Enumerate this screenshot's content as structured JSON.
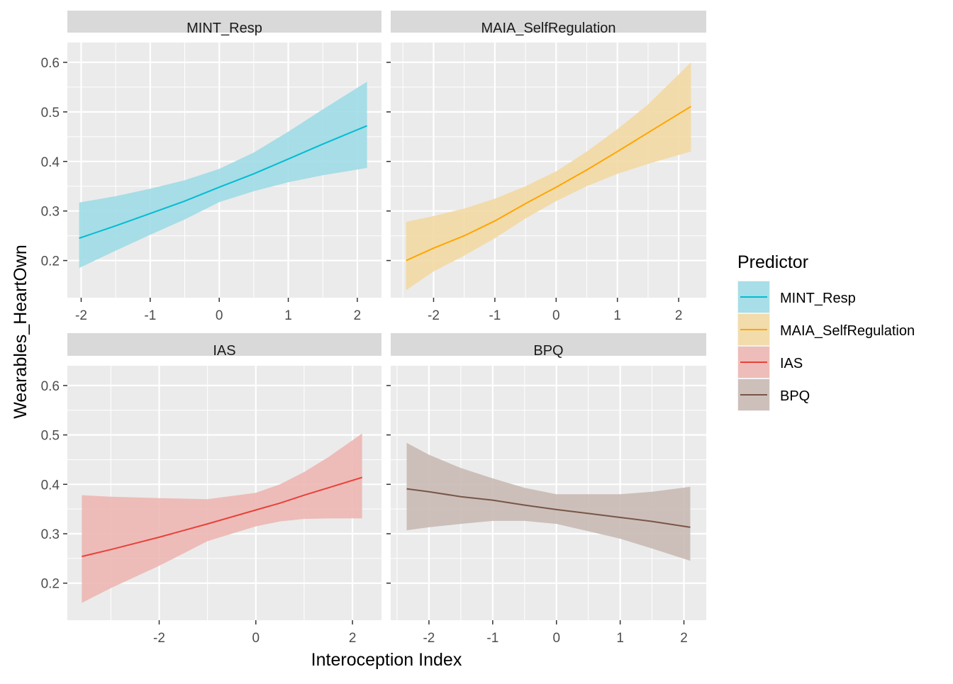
{
  "chart_data": {
    "type": "line",
    "xlabel": "Interoception Index",
    "ylabel": "Wearables_HeartOwn",
    "legend": {
      "title": "Predictor",
      "placement": "right",
      "entries": [
        "MINT_Resp",
        "MAIA_SelfRegulation",
        "IAS",
        "BPQ"
      ]
    },
    "grid": true,
    "ylim": [
      0.125,
      0.64
    ],
    "yticks": [
      0.2,
      0.3,
      0.4,
      0.5,
      0.6
    ],
    "y_tick_labels": [
      "0.2",
      "0.3",
      "0.4",
      "0.5",
      "0.6"
    ],
    "panels": [
      {
        "name": "MINT_Resp",
        "color": "#00BCD4",
        "fill": "#9EDCE6",
        "xlim": [
          -2.2,
          2.35
        ],
        "xticks": [
          -2,
          -1,
          0,
          1,
          2
        ],
        "x_tick_labels": [
          "-2",
          "-1",
          "0",
          "1",
          "2"
        ],
        "x": [
          -2.03,
          -1.5,
          -1.0,
          -0.5,
          0.0,
          0.5,
          1.0,
          1.5,
          2.14
        ],
        "fit": [
          0.245,
          0.27,
          0.295,
          0.32,
          0.348,
          0.375,
          0.405,
          0.435,
          0.472
        ],
        "lower": [
          0.185,
          0.22,
          0.252,
          0.283,
          0.318,
          0.34,
          0.358,
          0.372,
          0.387
        ],
        "upper": [
          0.317,
          0.33,
          0.345,
          0.362,
          0.385,
          0.418,
          0.46,
          0.505,
          0.561
        ]
      },
      {
        "name": "MAIA_SelfRegulation",
        "color": "#FFA500",
        "fill": "#F3D9A3",
        "xlim": [
          -2.7,
          2.45
        ],
        "xticks": [
          -2,
          -1,
          0,
          1,
          2
        ],
        "x_tick_labels": [
          "-2",
          "-1",
          "0",
          "1",
          "2"
        ],
        "x": [
          -2.45,
          -2.0,
          -1.5,
          -1.0,
          -0.5,
          0.0,
          0.5,
          1.0,
          1.5,
          2.2
        ],
        "fit": [
          0.2,
          0.225,
          0.25,
          0.28,
          0.315,
          0.348,
          0.383,
          0.42,
          0.458,
          0.511
        ],
        "lower": [
          0.14,
          0.178,
          0.21,
          0.245,
          0.285,
          0.32,
          0.35,
          0.375,
          0.395,
          0.42
        ],
        "upper": [
          0.278,
          0.29,
          0.305,
          0.325,
          0.35,
          0.38,
          0.42,
          0.465,
          0.515,
          0.6
        ]
      },
      {
        "name": "IAS",
        "color": "#E8413A",
        "fill": "#EDB7B3",
        "xlim": [
          -3.9,
          2.6
        ],
        "xticks": [
          -2,
          0,
          2
        ],
        "x_tick_labels": [
          "-2",
          "0",
          "2"
        ],
        "x": [
          -3.6,
          -3.0,
          -2.0,
          -1.0,
          0.0,
          0.5,
          1.0,
          1.5,
          2.2
        ],
        "fit": [
          0.254,
          0.268,
          0.293,
          0.32,
          0.348,
          0.362,
          0.378,
          0.393,
          0.414
        ],
        "lower": [
          0.16,
          0.19,
          0.235,
          0.285,
          0.315,
          0.325,
          0.33,
          0.331,
          0.331
        ],
        "upper": [
          0.378,
          0.375,
          0.372,
          0.37,
          0.383,
          0.4,
          0.425,
          0.455,
          0.503
        ]
      },
      {
        "name": "BPQ",
        "color": "#795548",
        "fill": "#C9BAB4",
        "xlim": [
          -2.6,
          2.35
        ],
        "xticks": [
          -2,
          -1,
          0,
          1,
          2
        ],
        "x_tick_labels": [
          "-2",
          "-1",
          "0",
          "1",
          "2"
        ],
        "x": [
          -2.35,
          -2.0,
          -1.5,
          -1.0,
          -0.5,
          0.0,
          0.5,
          1.0,
          1.5,
          2.1
        ],
        "fit": [
          0.391,
          0.385,
          0.375,
          0.368,
          0.358,
          0.349,
          0.341,
          0.333,
          0.325,
          0.313
        ],
        "lower": [
          0.307,
          0.313,
          0.32,
          0.326,
          0.326,
          0.32,
          0.305,
          0.29,
          0.27,
          0.245
        ],
        "upper": [
          0.484,
          0.46,
          0.433,
          0.412,
          0.393,
          0.38,
          0.38,
          0.38,
          0.385,
          0.395
        ]
      }
    ]
  }
}
